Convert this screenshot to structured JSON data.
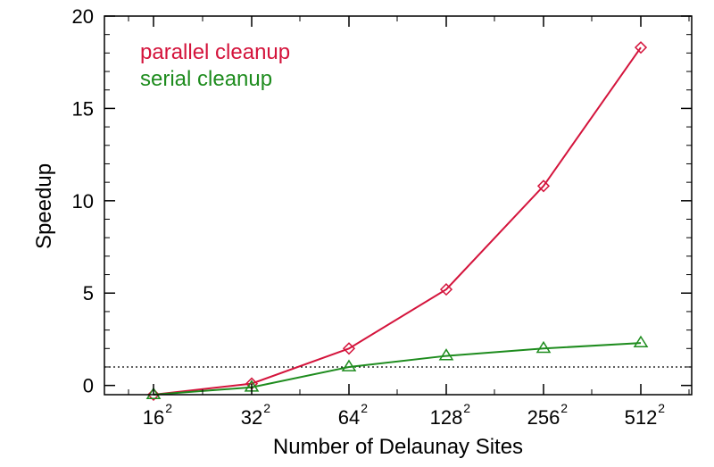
{
  "chart_data": {
    "type": "line",
    "title": "",
    "xlabel": "Number of Delaunay Sites",
    "ylabel": "Speedup",
    "x_ticks": [
      {
        "base": "16",
        "exp": "2"
      },
      {
        "base": "32",
        "exp": "2"
      },
      {
        "base": "64",
        "exp": "2"
      },
      {
        "base": "128",
        "exp": "2"
      },
      {
        "base": "256",
        "exp": "2"
      },
      {
        "base": "512",
        "exp": "2"
      }
    ],
    "y_ticks": [
      "0",
      "5",
      "10",
      "15",
      "20"
    ],
    "ylim": [
      -0.5,
      20
    ],
    "reference_line": {
      "y": 1,
      "style": "dotted"
    },
    "legend_position": "top-left",
    "series": [
      {
        "name": "parallel cleanup",
        "color": "#d4143c",
        "marker": "diamond",
        "values": [
          -0.5,
          0.1,
          2.0,
          5.2,
          10.8,
          18.3
        ]
      },
      {
        "name": "serial cleanup",
        "color": "#1e8c1e",
        "marker": "triangle",
        "values": [
          -0.5,
          -0.1,
          1.0,
          1.6,
          2.0,
          2.3
        ]
      }
    ]
  }
}
